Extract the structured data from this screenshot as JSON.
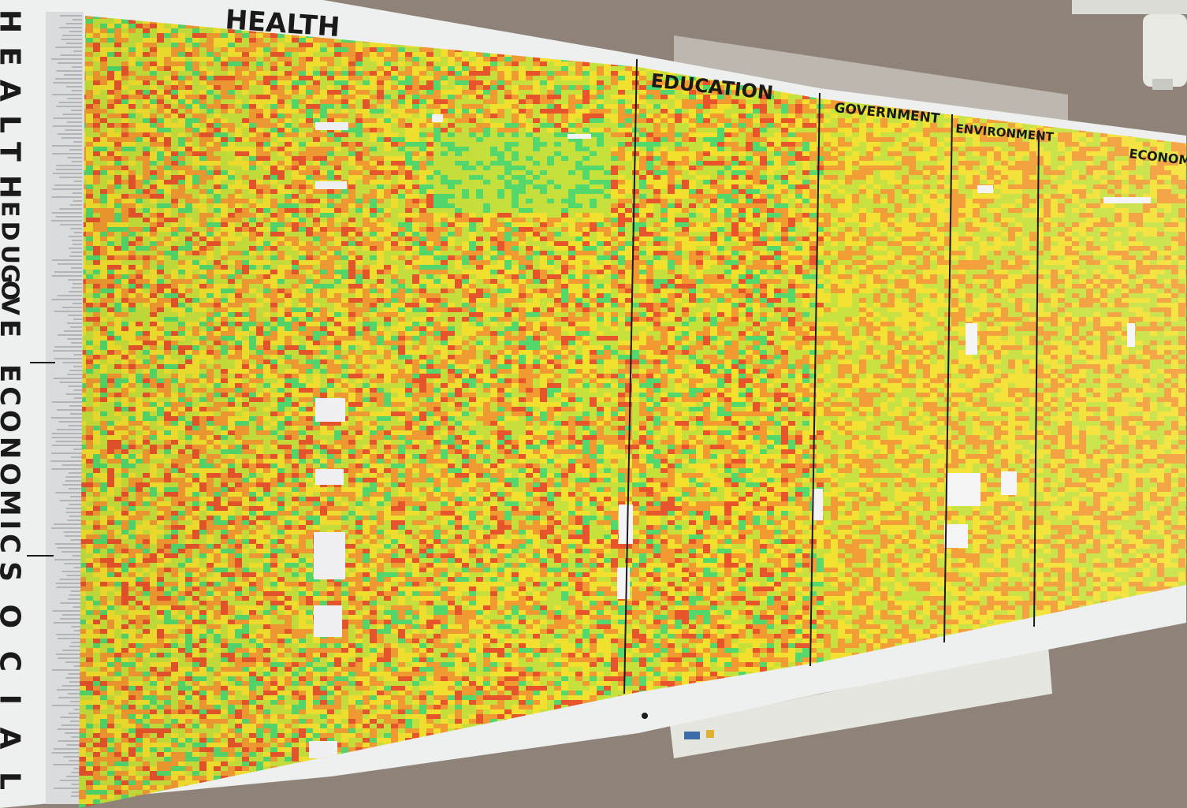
{
  "colors": {
    "wall": "#8f8379",
    "paper": "#eef0f0",
    "ink": "#1a1a1a",
    "heat_red": "#e8532a",
    "heat_orange": "#f29a30",
    "heat_yellow": "#f3e02c",
    "heat_lime": "#c6e03a",
    "heat_green": "#52d86a"
  },
  "top_headers": {
    "health": "HEALTH",
    "education": "EDUCATION",
    "government": "GOVERNMENT",
    "environment": "ENVIRONMENT",
    "economic": "ECONOMIC"
  },
  "side_labels": {
    "health": "HEALTH",
    "education": "EDU",
    "government": "GOV",
    "environment": "E",
    "economic": "ECONOMIC",
    "social": "SOCIAL"
  }
}
